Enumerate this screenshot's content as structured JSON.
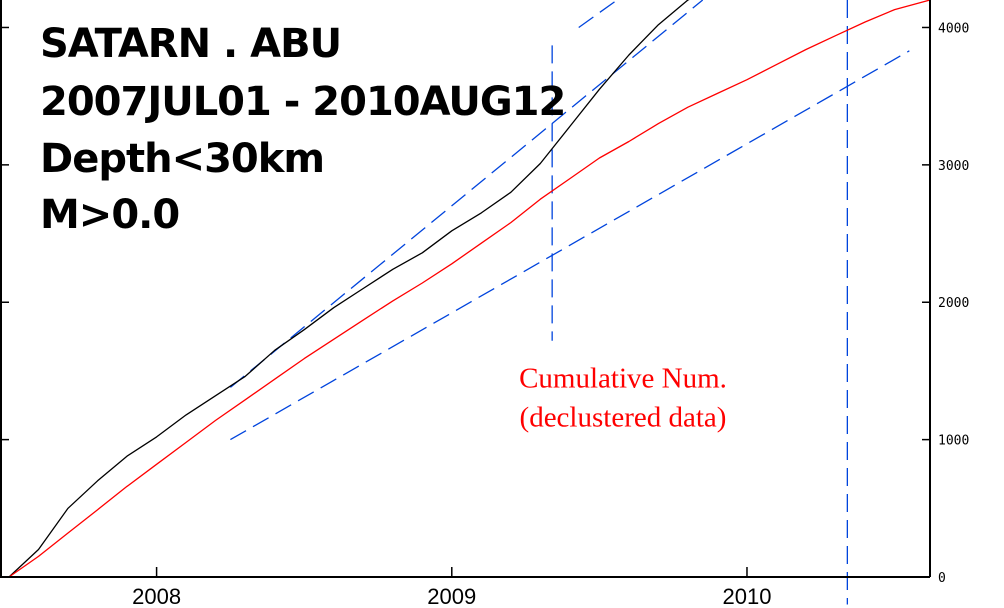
{
  "chart_data": {
    "type": "line",
    "title_lines": [
      "SATARN . ABU",
      "2007JUL01  -  2010AUG12",
      "Depth<30km",
      "M>0.0"
    ],
    "x_tick_labels": [
      "2008",
      "2009",
      "2010"
    ],
    "x_ticks": [
      2008.0,
      2009.0,
      2010.0
    ],
    "xlim": [
      2007.5,
      2010.62
    ],
    "y_tick_labels": [
      "0",
      "1000",
      "2000",
      "3000",
      "4000"
    ],
    "y_ticks": [
      0,
      1000,
      2000,
      3000,
      4000
    ],
    "ylim": [
      0,
      4200
    ],
    "series": [
      {
        "color": "#000000",
        "x": [
          2007.5,
          2007.6,
          2007.7,
          2007.8,
          2007.9,
          2008.0,
          2008.1,
          2008.2,
          2008.3,
          2008.4,
          2008.5,
          2008.6,
          2008.7,
          2008.8,
          2008.9,
          2009.0,
          2009.1,
          2009.2,
          2009.3,
          2009.4,
          2009.5,
          2009.6,
          2009.7,
          2009.8,
          2009.85
        ],
        "values": [
          0,
          200,
          500,
          700,
          880,
          1020,
          1180,
          1320,
          1460,
          1650,
          1800,
          1960,
          2100,
          2240,
          2360,
          2520,
          2650,
          2800,
          3010,
          3280,
          3550,
          3800,
          4020,
          4200,
          4250
        ]
      },
      {
        "color": "#ff0000",
        "x": [
          2007.5,
          2007.6,
          2007.7,
          2007.8,
          2007.9,
          2008.0,
          2008.1,
          2008.2,
          2008.3,
          2008.4,
          2008.5,
          2008.6,
          2008.7,
          2008.8,
          2008.9,
          2009.0,
          2009.1,
          2009.2,
          2009.3,
          2009.4,
          2009.5,
          2009.6,
          2009.7,
          2009.8,
          2009.9,
          2010.0,
          2010.1,
          2010.2,
          2010.3,
          2010.4,
          2010.5,
          2010.62
        ],
        "values": [
          0,
          150,
          320,
          490,
          660,
          820,
          980,
          1140,
          1290,
          1440,
          1590,
          1730,
          1870,
          2010,
          2140,
          2280,
          2430,
          2580,
          2750,
          2900,
          3050,
          3170,
          3300,
          3420,
          3520,
          3620,
          3730,
          3840,
          3940,
          4040,
          4130,
          4200
        ]
      }
    ],
    "fit_lines": [
      {
        "x": [
          2008.25,
          2009.85
        ],
        "values": [
          1380,
          4200
        ]
      },
      {
        "x": [
          2009.43,
          2009.56
        ],
        "values": [
          4000,
          4200
        ]
      },
      {
        "x": [
          2008.25,
          2010.55
        ],
        "values": [
          1000,
          3830
        ]
      }
    ],
    "vertical_markers": [
      2009.34,
      2010.34
    ],
    "vertical_marker_ranges": [
      [
        1720,
        3870
      ],
      [
        -200,
        4200
      ]
    ],
    "colors": {
      "cumulative": "#000000",
      "declustered": "#ff0000",
      "fit": "#0044dd"
    },
    "annotations": [
      {
        "text": "Cumulative Num.",
        "x": 2009.58,
        "y": 1380
      },
      {
        "text": "(declustered data)",
        "x": 2009.58,
        "y": 1095
      }
    ],
    "grid": false,
    "legend": "none"
  }
}
